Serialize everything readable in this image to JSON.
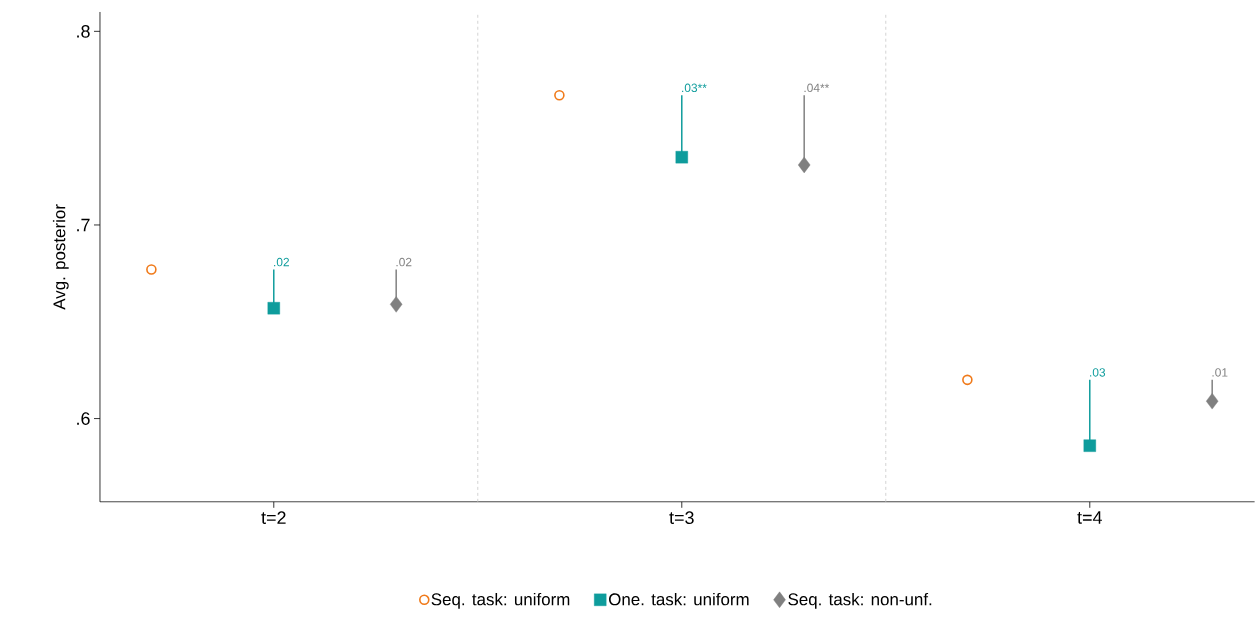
{
  "chart_data": {
    "type": "scatter",
    "ylabel": "Avg. posterior",
    "xlim": [
      1.574,
      4.404
    ],
    "ylim": [
      0.557,
      0.81
    ],
    "xticks": [
      {
        "value": 2,
        "label": "t=2"
      },
      {
        "value": 3,
        "label": "t=3"
      },
      {
        "value": 4,
        "label": "t=4"
      }
    ],
    "yticks": [
      {
        "value": 0.6,
        "label": ".6"
      },
      {
        "value": 0.7,
        "label": ".7"
      },
      {
        "value": 0.8,
        "label": ".8"
      }
    ],
    "series": [
      {
        "name": "Seq. task: uniform",
        "color": "#f07a1a",
        "marker": "circle",
        "x": [
          1.7,
          2.7,
          3.7
        ],
        "values": [
          0.677,
          0.767,
          0.62
        ]
      },
      {
        "name": "One. task: uniform",
        "color": "#0e9c9c",
        "marker": "square",
        "x": [
          2,
          3,
          4
        ],
        "values": [
          0.657,
          0.735,
          0.586
        ],
        "errors": [
          [
            0.657,
            0.677
          ],
          [
            0.735,
            0.767
          ],
          [
            0.586,
            0.62
          ]
        ]
      },
      {
        "name": "Seq. task: non-unf.",
        "color": "#808080",
        "marker": "diamond",
        "x": [
          2.3,
          3.3,
          4.3
        ],
        "values": [
          0.659,
          0.731,
          0.609
        ],
        "errors": [
          [
            0.659,
            0.677
          ],
          [
            0.731,
            0.767
          ],
          [
            0.609,
            0.62
          ]
        ]
      }
    ],
    "annotations": [
      {
        "text": ".02",
        "x": 2,
        "y": 0.677
      },
      {
        "text": ".03**",
        "x": 3,
        "y": 0.767
      },
      {
        "text": ".03",
        "x": 4,
        "y": 0.62
      },
      {
        "text": ".02",
        "x": 2.3,
        "y": 0.677
      },
      {
        "text": ".04**",
        "x": 3.3,
        "y": 0.767
      },
      {
        "text": ".01",
        "x": 4.3,
        "y": 0.62
      }
    ],
    "ref_lines": [
      {
        "axis": "x",
        "value": 2.5,
        "color": "#c8c8c8",
        "line_style": "dashed"
      },
      {
        "axis": "x",
        "value": 3.5,
        "color": "#c8c8c8",
        "line_style": "dashed"
      }
    ],
    "grid": false,
    "legend": "bottom"
  }
}
